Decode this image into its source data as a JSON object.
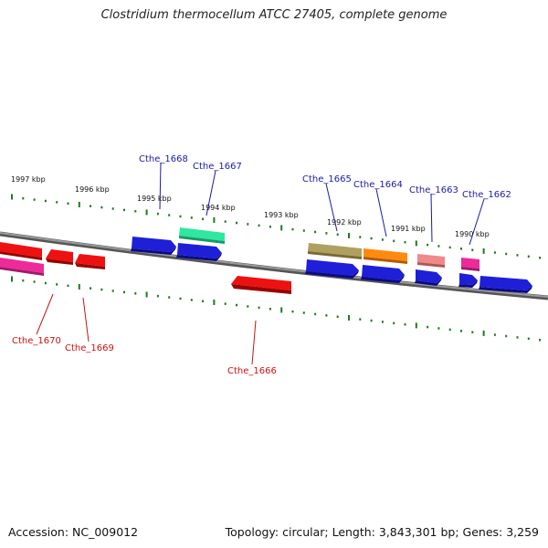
{
  "title": "Clostridium thermocellum ATCC 27405, complete genome",
  "footer": {
    "accession": "Accession: NC_009012",
    "summary": "Topology: circular; Length: 3,843,301 bp; Genes: 3,259"
  },
  "scale_labels": [
    "1997 kbp",
    "1996 kbp",
    "1995 kbp",
    "1994 kbp",
    "1993 kbp",
    "1992 kbp",
    "1991 kbp",
    "1990 kbp"
  ],
  "genes": [
    {
      "name": "Cthe_1668",
      "strand": "forward",
      "color": "#1f1fd8"
    },
    {
      "name": "Cthe_1667",
      "strand": "forward",
      "color": "#2ee8a0"
    },
    {
      "name": "Cthe_1665",
      "strand": "forward",
      "color": "#b0a060"
    },
    {
      "name": "Cthe_1664",
      "strand": "forward",
      "color": "#ff8a10"
    },
    {
      "name": "Cthe_1663",
      "strand": "forward",
      "color": "#f08a8a"
    },
    {
      "name": "Cthe_1662",
      "strand": "forward",
      "color": "#ee2a9a"
    },
    {
      "name": "Cthe_1670",
      "strand": "reverse",
      "color": "#ee1111"
    },
    {
      "name": "Cthe_1669",
      "strand": "reverse",
      "color": "#ee1111"
    },
    {
      "name": "Cthe_1666",
      "strand": "reverse",
      "color": "#ee1111"
    }
  ],
  "colors": {
    "backbone": "#7a7a7a",
    "ticks": "#1f7a1f",
    "forward_default": "#1f1fd8",
    "reverse_pink": "#ee2a9a"
  }
}
